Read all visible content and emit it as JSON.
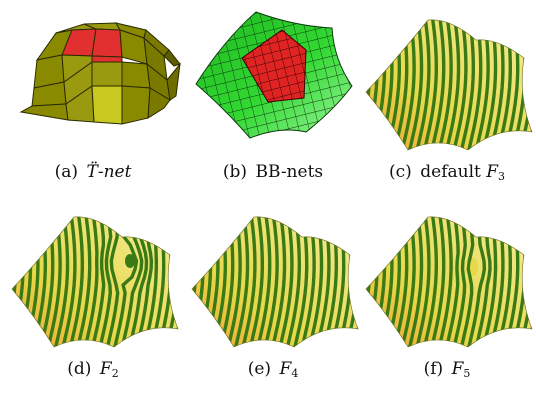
{
  "colors": {
    "net_olive": "#8a8a00",
    "net_olive_dark": "#5d5d00",
    "net_highlight_yellow": "#c8c820",
    "net_red": "#e23030",
    "bb_green": "#2fd12f",
    "bb_green_light": "#7fef7f",
    "stripe_green": "#3a7a14",
    "stripe_yellow": "#e8d84a",
    "stripe_orange": "#f0a030"
  },
  "panels": [
    {
      "id": "a",
      "type": "t-net",
      "caption_label": "(a)",
      "caption_text": "T̈-net"
    },
    {
      "id": "b",
      "type": "bb-nets",
      "caption_label": "(b)",
      "caption_text": "BB-nets"
    },
    {
      "id": "c",
      "type": "stripes",
      "caption_label": "(c)",
      "caption_text": "default",
      "caption_symbol": "F",
      "caption_sub": "3"
    },
    {
      "id": "d",
      "type": "stripes",
      "caption_label": "(d)",
      "caption_text": "",
      "caption_symbol": "F",
      "caption_sub": "2"
    },
    {
      "id": "e",
      "type": "stripes",
      "caption_label": "(e)",
      "caption_text": "",
      "caption_symbol": "F",
      "caption_sub": "4"
    },
    {
      "id": "f",
      "type": "stripes",
      "caption_label": "(f)",
      "caption_text": "",
      "caption_symbol": "F",
      "caption_sub": "5"
    }
  ]
}
